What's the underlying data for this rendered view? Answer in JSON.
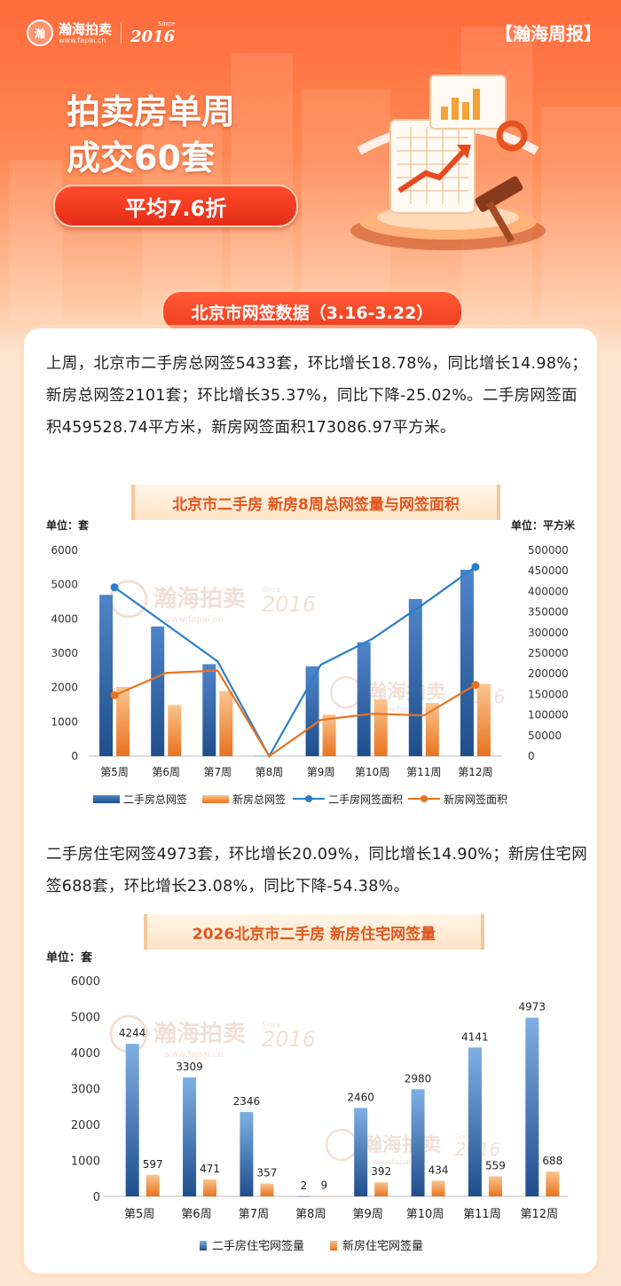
{
  "header": {
    "brand_name": "瀚海拍卖",
    "brand_url": "www.fapai.cn",
    "brand_since": "Since",
    "brand_year": "2016",
    "report_tag": "【瀚海周报】",
    "title_line1": "拍卖房单周",
    "title_line2": "成交60套",
    "discount_pill": "平均7.6折"
  },
  "section": {
    "tab_label": "北京市网签数据（3.16-3.22）"
  },
  "paragraph1": "上周，北京市二手房总网签5433套，环比增长18.78%，同比增长14.98%；新房总网签2101套；环比增长35.37%，同比下降-25.02%。二手房网签面积459528.74平方米，新房网签面积173086.97平方米。",
  "paragraph2": "二手房住宅网签4973套，环比增长20.09%，同比增长14.90%；新房住宅网签688套，环比增长23.08%，同比下降-54.38%。",
  "watermark": {
    "name": "瀚海拍卖",
    "url": "www.fapai.cn",
    "year": "2016",
    "since": "Since"
  },
  "colors": {
    "blue_dark": "#1f4e8c",
    "blue_light": "#7fb0e3",
    "orange_dark": "#e8731f",
    "orange_light": "#fbc48e",
    "line_blue": "#2a7fc9",
    "line_orange": "#e8731f",
    "accent": "#ff5a34"
  },
  "chart_data": [
    {
      "type": "bar",
      "title": "北京市二手房 新房8周总网签量与网签面积",
      "ylabel": "单位：套",
      "y2label": "单位：平方米",
      "categories": [
        "第5周",
        "第6周",
        "第7周",
        "第8周",
        "第9周",
        "第10周",
        "第11周",
        "第12周"
      ],
      "ylim": [
        0,
        6000
      ],
      "yticks": [
        0,
        1000,
        2000,
        3000,
        4000,
        5000,
        6000
      ],
      "y2lim": [
        0,
        500000
      ],
      "y2ticks": [
        0,
        50000,
        100000,
        150000,
        200000,
        250000,
        300000,
        350000,
        400000,
        450000,
        500000
      ],
      "series": [
        {
          "name": "二手房总网签",
          "kind": "bar",
          "axis": "left",
          "values": [
            4700,
            3780,
            2680,
            10,
            2620,
            3320,
            4580,
            5433
          ]
        },
        {
          "name": "新房总网签",
          "kind": "bar",
          "axis": "left",
          "values": [
            2020,
            1490,
            1900,
            5,
            1210,
            1650,
            1550,
            2101
          ]
        },
        {
          "name": "二手房网签面积",
          "kind": "line",
          "axis": "right",
          "values": [
            410000,
            320000,
            230000,
            0,
            222000,
            285000,
            370000,
            459529
          ]
        },
        {
          "name": "新房网签面积",
          "kind": "line",
          "axis": "right",
          "values": [
            148000,
            202000,
            208000,
            0,
            88000,
            103000,
            99000,
            173087
          ]
        }
      ],
      "legend": "bottom"
    },
    {
      "type": "bar",
      "title": "2026北京市二手房 新房住宅网签量",
      "ylabel": "单位：套",
      "categories": [
        "第5周",
        "第6周",
        "第7周",
        "第8周",
        "第9周",
        "第10周",
        "第11周",
        "第12周"
      ],
      "ylim": [
        0,
        6000
      ],
      "yticks": [
        0,
        1000,
        2000,
        3000,
        4000,
        5000,
        6000
      ],
      "series": [
        {
          "name": "二手房住宅网签量",
          "values": [
            4244,
            3309,
            2346,
            2,
            2460,
            2980,
            4141,
            4973
          ]
        },
        {
          "name": "新房住宅网签量",
          "values": [
            597,
            471,
            357,
            9,
            392,
            434,
            559,
            688
          ]
        }
      ],
      "data_labels": true,
      "legend": "bottom"
    }
  ]
}
